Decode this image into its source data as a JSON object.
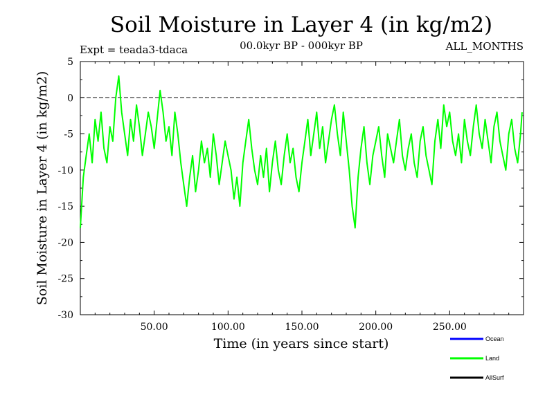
{
  "chart_data": {
    "type": "line",
    "title": "Soil Moisture in Layer 4 (in kg/m2)",
    "subtitle_left": "Expt = teada3-tdaca",
    "subtitle_center": "00.0kyr BP - 000kyr BP",
    "subtitle_right": "ALL_MONTHS",
    "xlabel": "Time (in years since start)",
    "ylabel": "Soil Moisture in Layer 4 (in kg/m2)",
    "xlim": [
      0,
      300
    ],
    "ylim": [
      -30,
      5
    ],
    "xticks": [
      50,
      100,
      150,
      200,
      250
    ],
    "xtick_labels": [
      "50.00",
      "100.00",
      "150.00",
      "200.00",
      "250.00"
    ],
    "yticks": [
      5,
      0,
      -5,
      -10,
      -15,
      -20,
      -25,
      -30
    ],
    "ytick_labels": [
      "5",
      "0",
      "-5",
      "-10",
      "-15",
      "-20",
      "-25",
      "-30"
    ],
    "reference_line": 0,
    "legend": [
      {
        "name": "Ocean",
        "color": "#0000ff"
      },
      {
        "name": "Land",
        "color": "#00ff00"
      },
      {
        "name": "AllSurf",
        "color": "#000000"
      }
    ],
    "series": [
      {
        "name": "Land",
        "color": "#00ff00",
        "x": [
          0,
          2,
          4,
          6,
          8,
          10,
          12,
          14,
          16,
          18,
          20,
          22,
          24,
          26,
          28,
          30,
          32,
          34,
          36,
          38,
          40,
          42,
          44,
          46,
          48,
          50,
          52,
          54,
          56,
          58,
          60,
          62,
          64,
          66,
          68,
          70,
          72,
          74,
          76,
          78,
          80,
          82,
          84,
          86,
          88,
          90,
          92,
          94,
          96,
          98,
          100,
          102,
          104,
          106,
          108,
          110,
          112,
          114,
          116,
          118,
          120,
          122,
          124,
          126,
          128,
          130,
          132,
          134,
          136,
          138,
          140,
          142,
          144,
          146,
          148,
          150,
          152,
          154,
          156,
          158,
          160,
          162,
          164,
          166,
          168,
          170,
          172,
          174,
          176,
          178,
          180,
          182,
          184,
          186,
          188,
          190,
          192,
          194,
          196,
          198,
          200,
          202,
          204,
          206,
          208,
          210,
          212,
          214,
          216,
          218,
          220,
          222,
          224,
          226,
          228,
          230,
          232,
          234,
          236,
          238,
          240,
          242,
          244,
          246,
          248,
          250,
          252,
          254,
          256,
          258,
          260,
          262,
          264,
          266,
          268,
          270,
          272,
          274,
          276,
          278,
          280,
          282,
          284,
          286,
          288,
          290,
          292,
          294,
          296,
          298,
          299
        ],
        "y": [
          -18,
          -11,
          -8,
          -5,
          -9,
          -3,
          -6,
          -2,
          -7,
          -9,
          -4,
          -6,
          0,
          3,
          -2,
          -5,
          -8,
          -3,
          -6,
          -1,
          -4,
          -8,
          -5,
          -2,
          -4,
          -7,
          -3,
          1,
          -2,
          -6,
          -4,
          -8,
          -2,
          -5,
          -9,
          -12,
          -15,
          -11,
          -8,
          -13,
          -10,
          -6,
          -9,
          -7,
          -11,
          -5,
          -8,
          -12,
          -9,
          -6,
          -8,
          -10,
          -14,
          -11,
          -15,
          -9,
          -6,
          -3,
          -7,
          -10,
          -12,
          -8,
          -11,
          -7,
          -13,
          -9,
          -6,
          -10,
          -12,
          -8,
          -5,
          -9,
          -7,
          -11,
          -13,
          -9,
          -6,
          -3,
          -8,
          -5,
          -2,
          -7,
          -4,
          -9,
          -6,
          -3,
          -1,
          -5,
          -8,
          -2,
          -6,
          -10,
          -15,
          -18,
          -11,
          -7,
          -4,
          -9,
          -12,
          -8,
          -6,
          -4,
          -8,
          -11,
          -5,
          -7,
          -9,
          -6,
          -3,
          -8,
          -10,
          -7,
          -5,
          -9,
          -11,
          -6,
          -4,
          -8,
          -10,
          -12,
          -6,
          -3,
          -7,
          -1,
          -4,
          -2,
          -6,
          -8,
          -5,
          -9,
          -3,
          -6,
          -8,
          -4,
          -1,
          -5,
          -7,
          -3,
          -6,
          -9,
          -4,
          -2,
          -6,
          -8,
          -10,
          -5,
          -3,
          -7,
          -9,
          -5,
          -2
        ]
      }
    ]
  }
}
